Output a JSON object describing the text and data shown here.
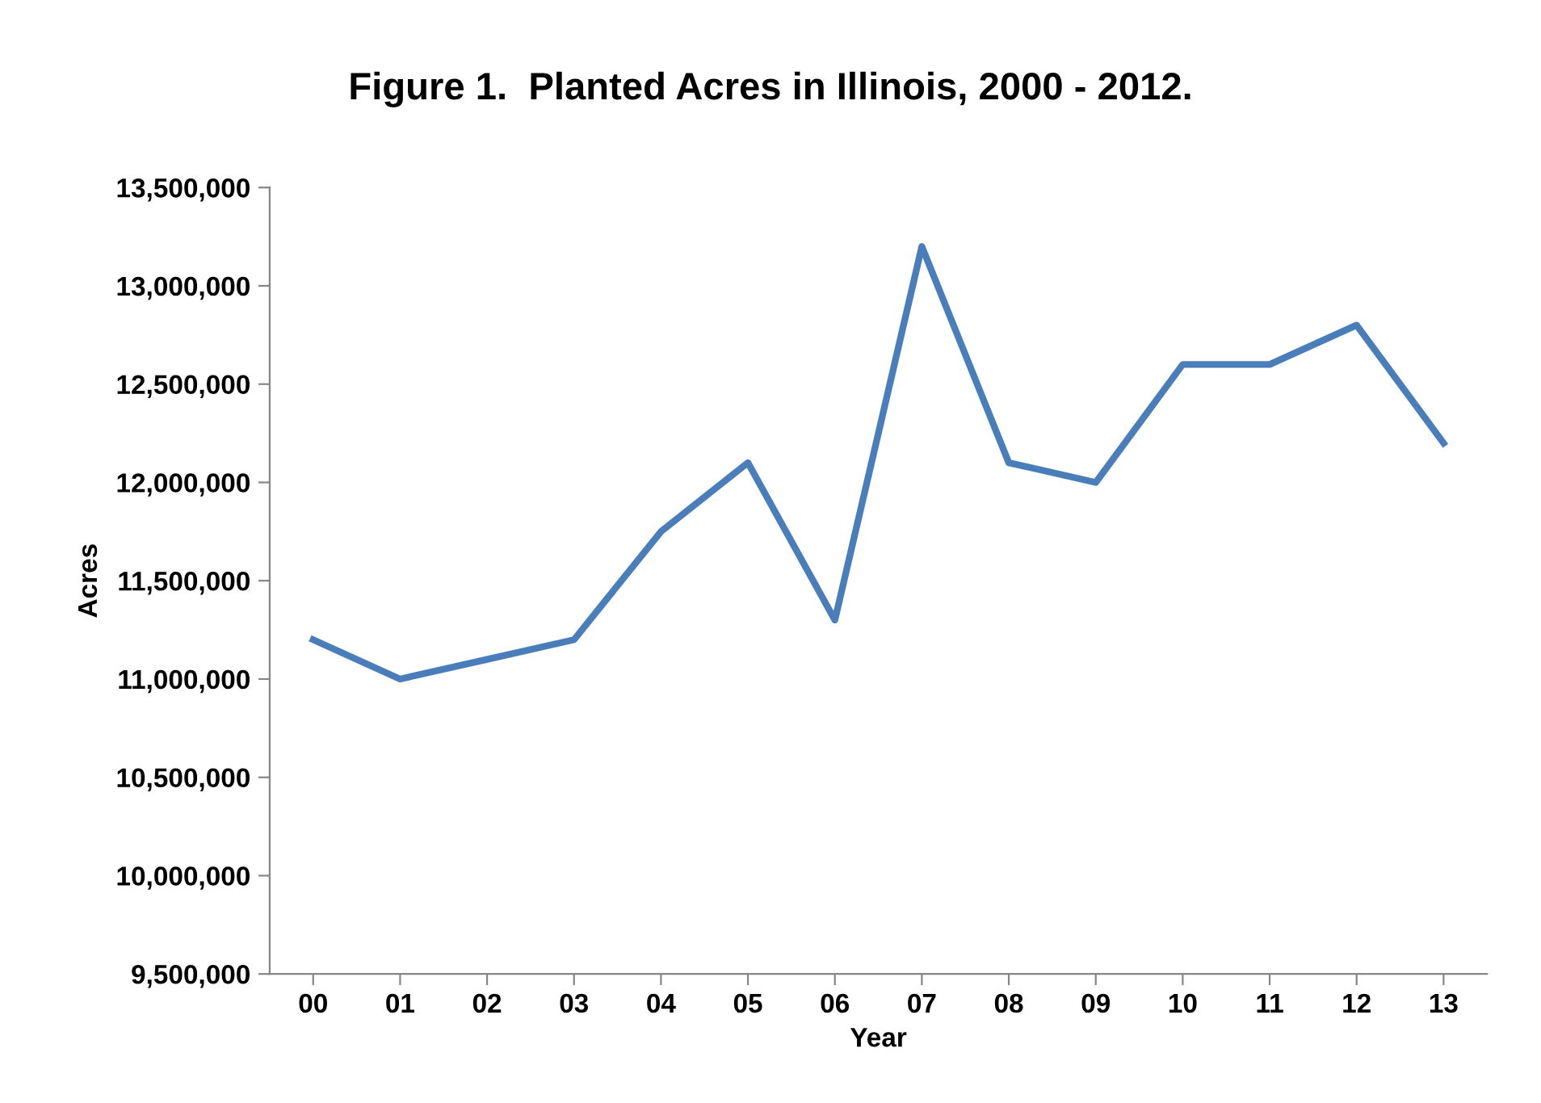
{
  "chart_data": {
    "type": "line",
    "title": "Figure 1.  Planted Acres in Illinois, 2000 - 2012.",
    "xlabel": "Year",
    "ylabel": "Acres",
    "categories": [
      "00",
      "01",
      "02",
      "03",
      "04",
      "05",
      "06",
      "07",
      "08",
      "09",
      "10",
      "11",
      "12",
      "13"
    ],
    "series": [
      {
        "color": "#4a7ebb",
        "values": [
          11200000,
          11000000,
          11100000,
          11200000,
          11750000,
          12100000,
          11300000,
          13200000,
          12100000,
          12000000,
          12600000,
          12600000,
          12800000,
          12200000
        ]
      }
    ],
    "ylim": [
      9500000,
      13500000
    ],
    "yticks": [
      {
        "value": 9500000,
        "label": "9,500,000"
      },
      {
        "value": 10000000,
        "label": "10,000,000"
      },
      {
        "value": 10500000,
        "label": "10,500,000"
      },
      {
        "value": 11000000,
        "label": "11,000,000"
      },
      {
        "value": 11500000,
        "label": "11,500,000"
      },
      {
        "value": 12000000,
        "label": "12,000,000"
      },
      {
        "value": 12500000,
        "label": "12,500,000"
      },
      {
        "value": 13000000,
        "label": "13,000,000"
      },
      {
        "value": 13500000,
        "label": "13,500,000"
      }
    ],
    "grid": false,
    "marker": "none",
    "line_style": "solid"
  }
}
